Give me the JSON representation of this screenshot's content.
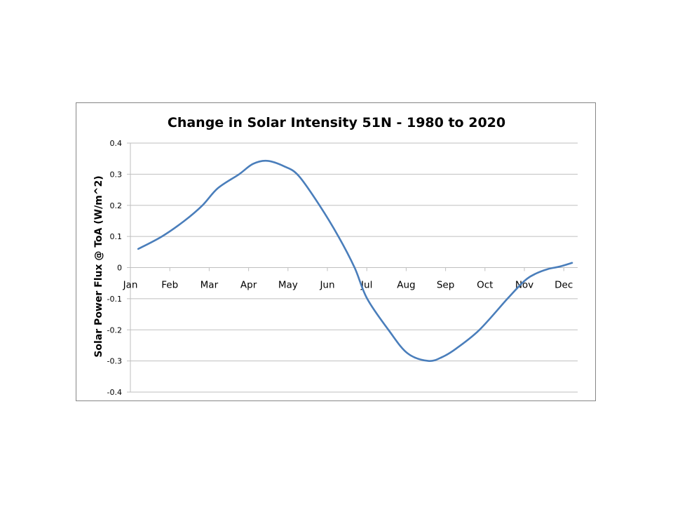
{
  "chart_data": {
    "type": "line",
    "title": "Change in Solar Intensity 51N - 1980 to 2020",
    "xlabel": "",
    "ylabel": "Solar Power Flux @ ToA (W/m^2)",
    "categories": [
      "Jan",
      "Feb",
      "Mar",
      "Apr",
      "May",
      "Jun",
      "Jul",
      "Aug",
      "Sep",
      "Oct",
      "Nov",
      "Dec"
    ],
    "ylim": [
      -0.4,
      0.4
    ],
    "yticks": [
      0.4,
      0.3,
      0.2,
      0.1,
      0,
      -0.1,
      -0.2,
      -0.3,
      -0.4
    ],
    "ytick_labels": [
      "0.4",
      "0.3",
      "0.2",
      "0.1",
      "0",
      "-0.1",
      "-0.2",
      "-0.3",
      "-0.4"
    ],
    "grid": true,
    "legend": "none",
    "x_unit": "month index (0 = Jan tick, 11 = Dec tick)",
    "series": [
      {
        "name": "Change in Solar Intensity",
        "color": "#4A7EBB",
        "x": [
          0.2,
          0.8,
          1.37,
          1.83,
          2.22,
          2.76,
          3.11,
          3.47,
          3.91,
          4.27,
          4.8,
          5.28,
          5.69,
          6.01,
          6.55,
          7.03,
          7.56,
          7.92,
          8.27,
          8.86,
          9.57,
          10.0,
          10.28,
          10.59,
          10.89,
          11.21
        ],
        "values": [
          0.06,
          0.1,
          0.15,
          0.2,
          0.255,
          0.3,
          0.333,
          0.343,
          0.325,
          0.295,
          0.2,
          0.1,
          0.0,
          -0.1,
          -0.2,
          -0.275,
          -0.3,
          -0.287,
          -0.26,
          -0.2,
          -0.1,
          -0.043,
          -0.02,
          -0.005,
          0.003,
          0.015
        ]
      }
    ]
  }
}
